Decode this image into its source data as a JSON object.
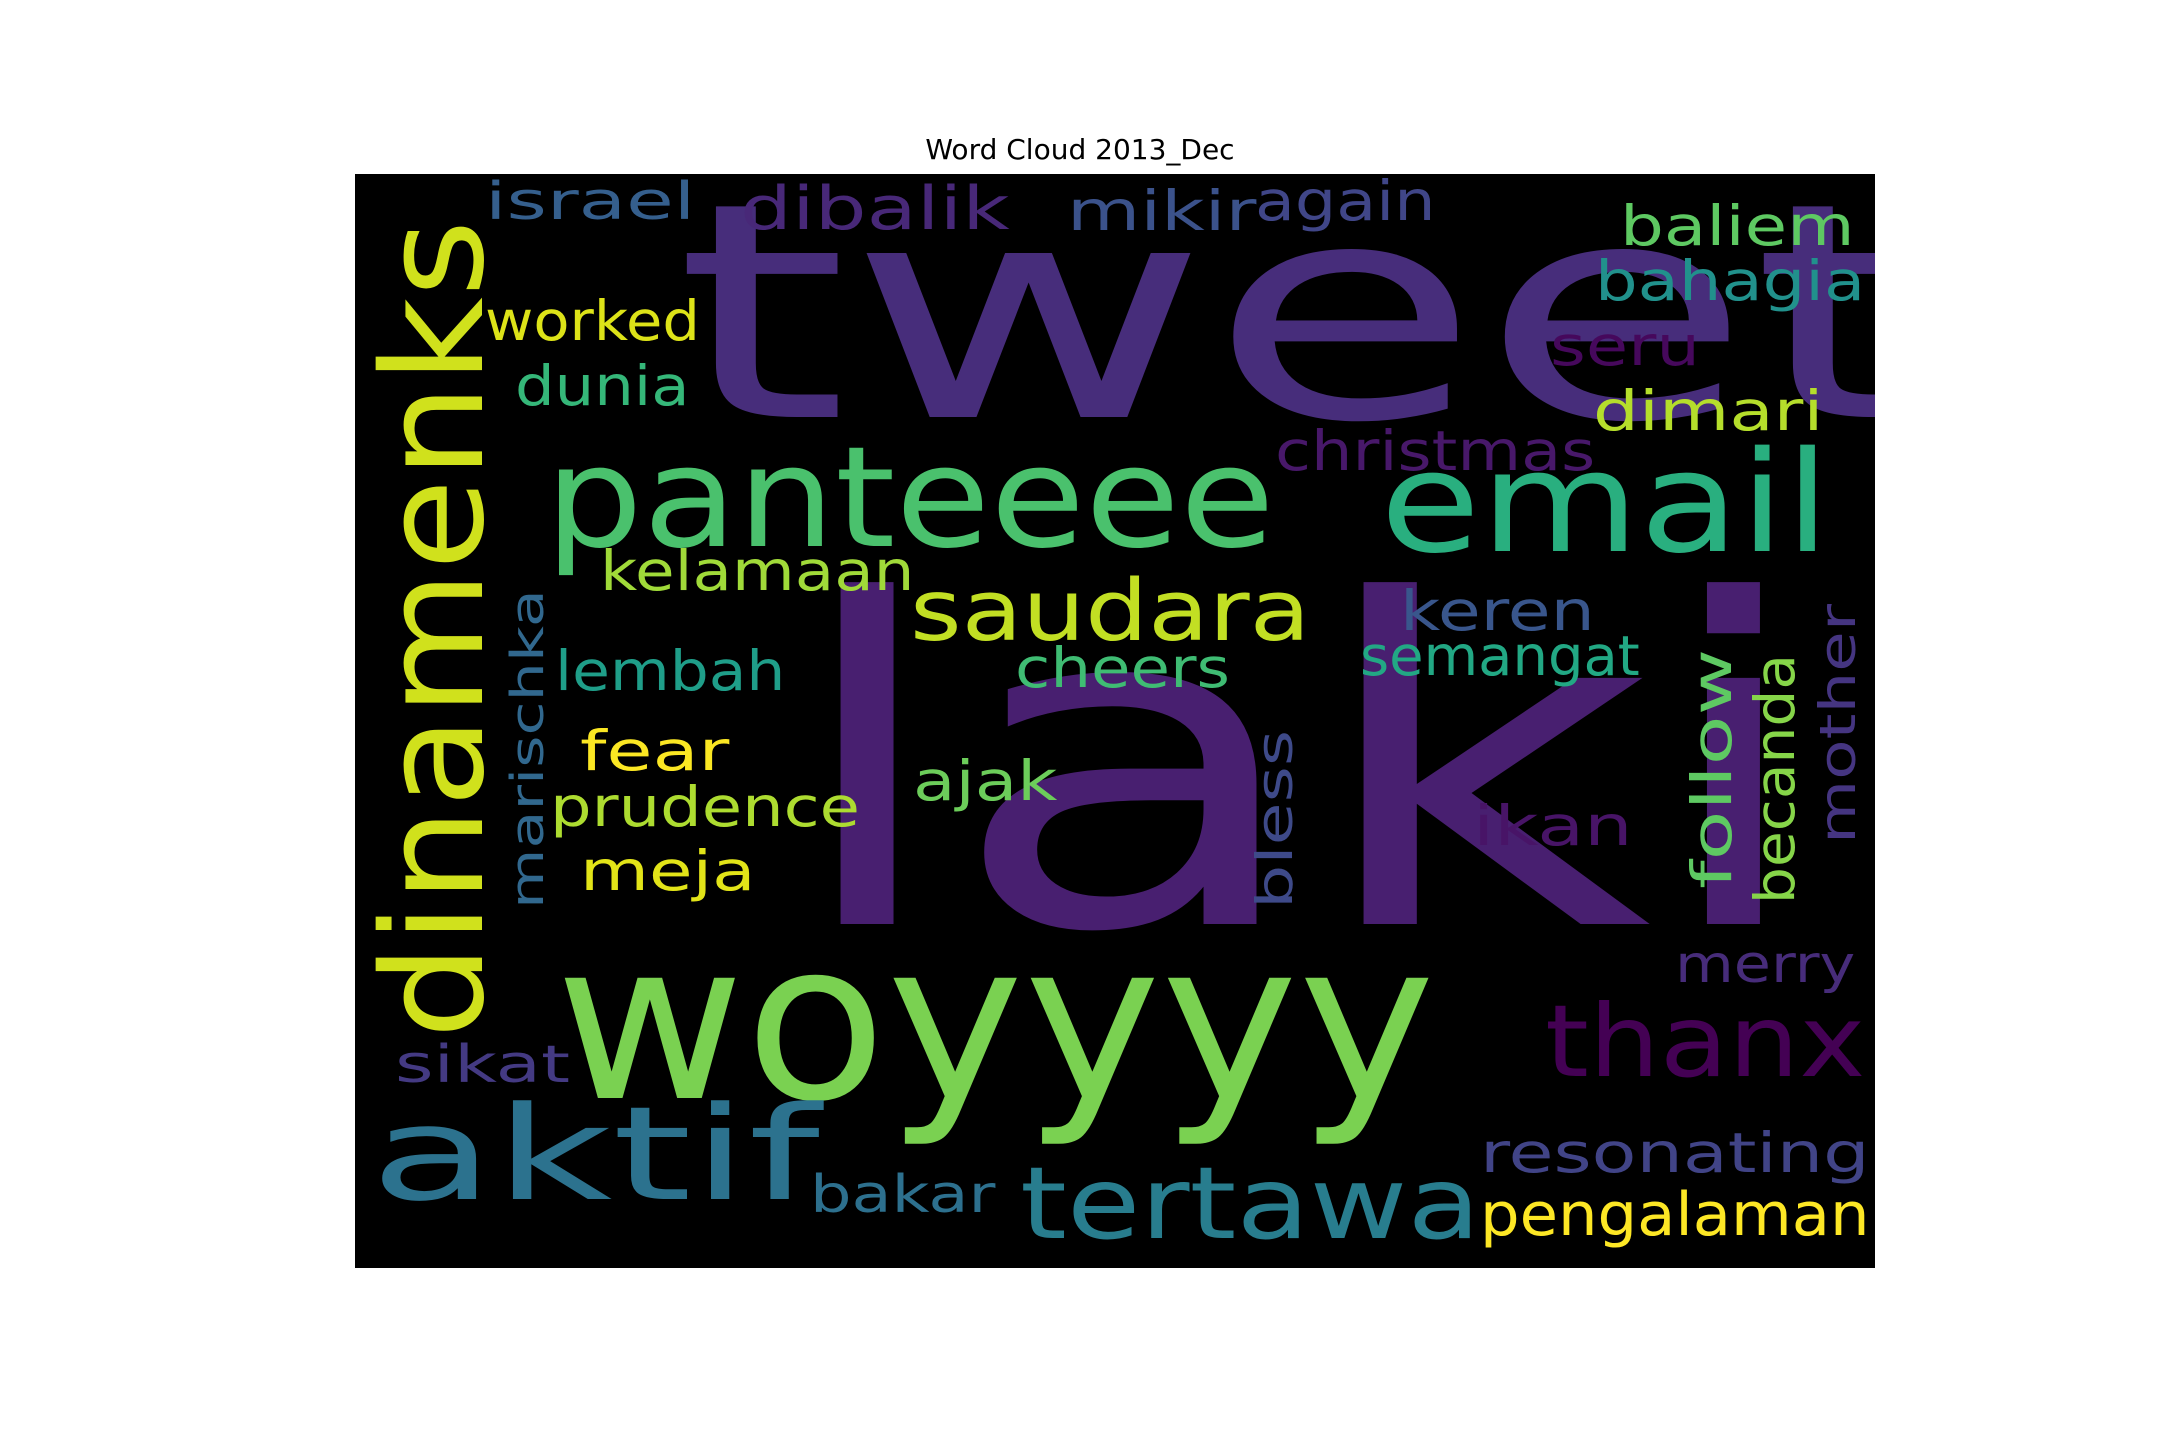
{
  "title": "Word Cloud 2013_Dec",
  "background_color": "#000000",
  "words": [
    {
      "text": "laki",
      "color": "#481f70",
      "rotated": false
    },
    {
      "text": "tweet",
      "color": "#472d7b",
      "rotated": false
    },
    {
      "text": "woyyyy",
      "color": "#7ad151",
      "rotated": false
    },
    {
      "text": "dinamenks",
      "color": "#d0e11c",
      "rotated": true
    },
    {
      "text": "panteeee",
      "color": "#4ac16d",
      "rotated": false
    },
    {
      "text": "email",
      "color": "#29af7f",
      "rotated": false
    },
    {
      "text": "aktif",
      "color": "#2c728e",
      "rotated": false
    },
    {
      "text": "thanx",
      "color": "#440154",
      "rotated": false
    },
    {
      "text": "tertawa",
      "color": "#287d8e",
      "rotated": false
    },
    {
      "text": "saudara",
      "color": "#c2df23",
      "rotated": false
    },
    {
      "text": "pengalaman",
      "color": "#fde725",
      "rotated": false
    },
    {
      "text": "resonating",
      "color": "#414487",
      "rotated": false
    },
    {
      "text": "israel",
      "color": "#355f8d",
      "rotated": false
    },
    {
      "text": "dibalik",
      "color": "#482878",
      "rotated": false
    },
    {
      "text": "mikir",
      "color": "#3b528b",
      "rotated": false
    },
    {
      "text": "again",
      "color": "#404688",
      "rotated": false
    },
    {
      "text": "baliem",
      "color": "#5ec962",
      "rotated": false
    },
    {
      "text": "bahagia",
      "color": "#21918c",
      "rotated": false
    },
    {
      "text": "worked",
      "color": "#dde318",
      "rotated": false
    },
    {
      "text": "seru",
      "color": "#46085c",
      "rotated": false
    },
    {
      "text": "dunia",
      "color": "#35b779",
      "rotated": false
    },
    {
      "text": "dimari",
      "color": "#b5de2b",
      "rotated": false
    },
    {
      "text": "christmas",
      "color": "#48186a",
      "rotated": false
    },
    {
      "text": "kelamaan",
      "color": "#a0da39",
      "rotated": false
    },
    {
      "text": "keren",
      "color": "#39568c",
      "rotated": false
    },
    {
      "text": "marischka",
      "color": "#31688e",
      "rotated": true
    },
    {
      "text": "lembah",
      "color": "#1f9e89",
      "rotated": false
    },
    {
      "text": "cheers",
      "color": "#3fbc73",
      "rotated": false
    },
    {
      "text": "semangat",
      "color": "#22a884",
      "rotated": false
    },
    {
      "text": "follow",
      "color": "#5ec962",
      "rotated": true
    },
    {
      "text": "becanda",
      "color": "#86d549",
      "rotated": true
    },
    {
      "text": "mother",
      "color": "#453581",
      "rotated": true
    },
    {
      "text": "fear",
      "color": "#fbe723",
      "rotated": false
    },
    {
      "text": "prudence",
      "color": "#addc30",
      "rotated": false
    },
    {
      "text": "ajak",
      "color": "#6ccd5a",
      "rotated": false
    },
    {
      "text": "bless",
      "color": "#3e4a89",
      "rotated": true
    },
    {
      "text": "ikan",
      "color": "#481467",
      "rotated": false
    },
    {
      "text": "meja",
      "color": "#e2e418",
      "rotated": false
    },
    {
      "text": "merry",
      "color": "#472c7a",
      "rotated": false
    },
    {
      "text": "sikat",
      "color": "#443a83",
      "rotated": false
    },
    {
      "text": "bakar",
      "color": "#2d708e",
      "rotated": false
    }
  ]
}
